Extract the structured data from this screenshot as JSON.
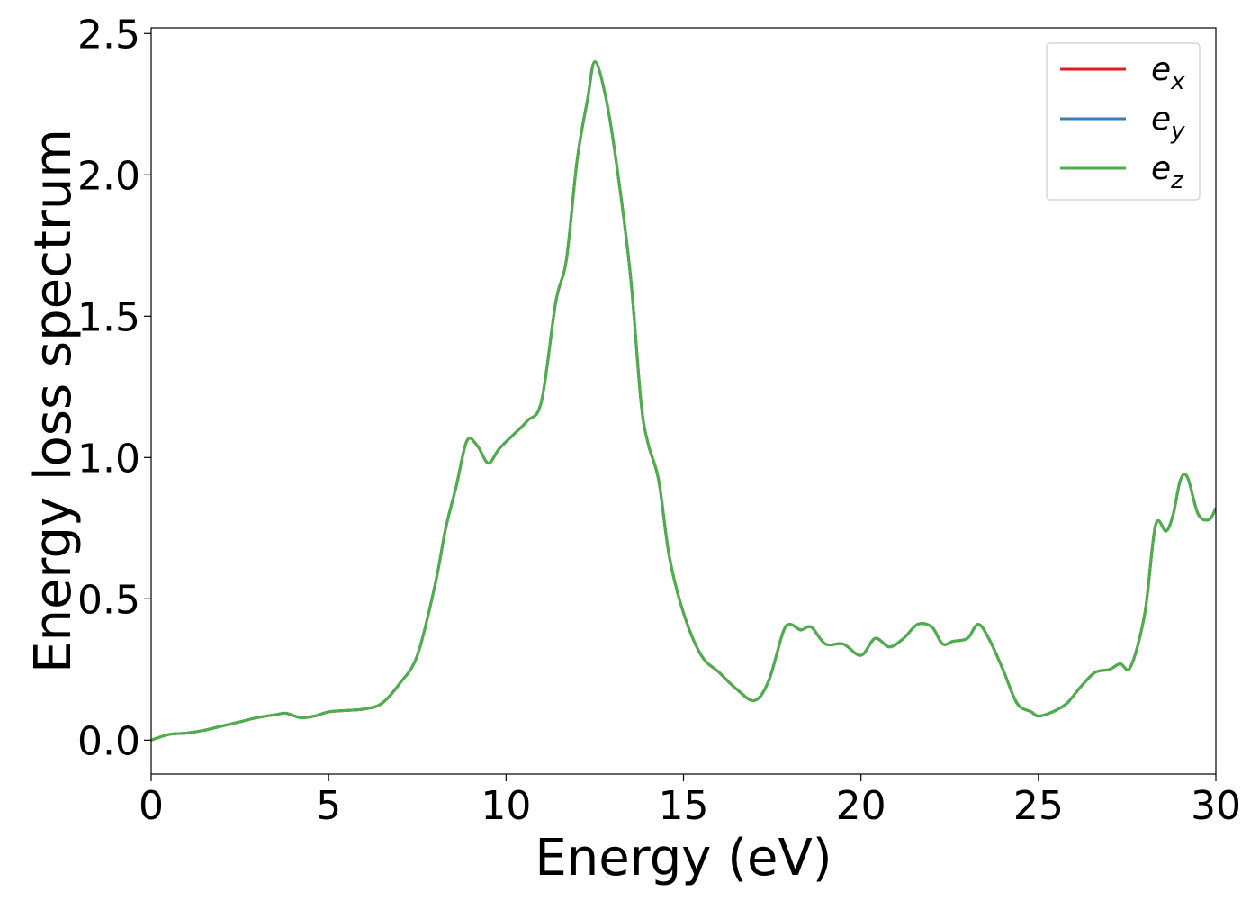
{
  "chart_data": {
    "type": "line",
    "title": "",
    "xlabel": "Energy (eV)",
    "ylabel": "Energy loss spectrum",
    "xlim": [
      0,
      30
    ],
    "ylim": [
      -0.12,
      2.52
    ],
    "xticks": [
      0,
      5,
      10,
      15,
      20,
      25,
      30
    ],
    "xtick_labels": [
      "0",
      "5",
      "10",
      "15",
      "20",
      "25",
      "30"
    ],
    "yticks": [
      0.0,
      0.5,
      1.0,
      1.5,
      2.0,
      2.5
    ],
    "ytick_labels": [
      "0.0",
      "0.5",
      "1.0",
      "1.5",
      "2.0",
      "2.5"
    ],
    "grid": false,
    "legend_position": "top-right",
    "series": [
      {
        "name": "e_x",
        "legend_base": "e",
        "legend_sub": "x",
        "color": "#e41a1c",
        "x": [
          0,
          0.5,
          1.0,
          1.5,
          2.0,
          2.5,
          3.0,
          3.5,
          3.8,
          4.2,
          4.6,
          5.0,
          5.5,
          6.0,
          6.5,
          7.0,
          7.5,
          8.0,
          8.3,
          8.6,
          8.9,
          9.2,
          9.5,
          9.8,
          10.2,
          10.6,
          11.0,
          11.4,
          11.7,
          12.0,
          12.3,
          12.5,
          12.8,
          13.1,
          13.5,
          13.8,
          14.0,
          14.3,
          14.6,
          15.0,
          15.5,
          16.0,
          16.5,
          17.0,
          17.4,
          17.8,
          18.0,
          18.3,
          18.6,
          19.0,
          19.5,
          20.0,
          20.4,
          20.8,
          21.2,
          21.6,
          22.0,
          22.3,
          22.6,
          23.0,
          23.3,
          23.6,
          24.0,
          24.4,
          24.8,
          25.0,
          25.4,
          25.8,
          26.2,
          26.6,
          27.0,
          27.3,
          27.6,
          28.0,
          28.3,
          28.6,
          28.8,
          29.0,
          29.2,
          29.5,
          29.8,
          30.0
        ],
        "y": [
          0.0,
          0.02,
          0.025,
          0.035,
          0.05,
          0.065,
          0.08,
          0.09,
          0.095,
          0.08,
          0.085,
          0.1,
          0.105,
          0.11,
          0.13,
          0.2,
          0.3,
          0.55,
          0.75,
          0.9,
          1.06,
          1.04,
          0.98,
          1.03,
          1.08,
          1.13,
          1.2,
          1.55,
          1.7,
          2.05,
          2.27,
          2.4,
          2.28,
          2.05,
          1.65,
          1.2,
          1.05,
          0.92,
          0.65,
          0.45,
          0.3,
          0.24,
          0.18,
          0.14,
          0.21,
          0.38,
          0.41,
          0.39,
          0.4,
          0.34,
          0.34,
          0.3,
          0.36,
          0.33,
          0.36,
          0.41,
          0.4,
          0.34,
          0.35,
          0.36,
          0.41,
          0.36,
          0.25,
          0.13,
          0.1,
          0.085,
          0.1,
          0.13,
          0.19,
          0.24,
          0.25,
          0.27,
          0.26,
          0.45,
          0.76,
          0.74,
          0.8,
          0.92,
          0.93,
          0.8,
          0.78,
          0.82
        ]
      },
      {
        "name": "e_y",
        "legend_base": "e",
        "legend_sub": "y",
        "color": "#377eb8",
        "x": [
          0,
          0.5,
          1.0,
          1.5,
          2.0,
          2.5,
          3.0,
          3.5,
          3.8,
          4.2,
          4.6,
          5.0,
          5.5,
          6.0,
          6.5,
          7.0,
          7.5,
          8.0,
          8.3,
          8.6,
          8.9,
          9.2,
          9.5,
          9.8,
          10.2,
          10.6,
          11.0,
          11.4,
          11.7,
          12.0,
          12.3,
          12.5,
          12.8,
          13.1,
          13.5,
          13.8,
          14.0,
          14.3,
          14.6,
          15.0,
          15.5,
          16.0,
          16.5,
          17.0,
          17.4,
          17.8,
          18.0,
          18.3,
          18.6,
          19.0,
          19.5,
          20.0,
          20.4,
          20.8,
          21.2,
          21.6,
          22.0,
          22.3,
          22.6,
          23.0,
          23.3,
          23.6,
          24.0,
          24.4,
          24.8,
          25.0,
          25.4,
          25.8,
          26.2,
          26.6,
          27.0,
          27.3,
          27.6,
          28.0,
          28.3,
          28.6,
          28.8,
          29.0,
          29.2,
          29.5,
          29.8,
          30.0
        ],
        "y": [
          0.0,
          0.02,
          0.025,
          0.035,
          0.05,
          0.065,
          0.08,
          0.09,
          0.095,
          0.08,
          0.085,
          0.1,
          0.105,
          0.11,
          0.13,
          0.2,
          0.3,
          0.55,
          0.75,
          0.9,
          1.06,
          1.04,
          0.98,
          1.03,
          1.08,
          1.13,
          1.2,
          1.55,
          1.7,
          2.05,
          2.27,
          2.4,
          2.28,
          2.05,
          1.65,
          1.2,
          1.05,
          0.92,
          0.65,
          0.45,
          0.3,
          0.24,
          0.18,
          0.14,
          0.21,
          0.38,
          0.41,
          0.39,
          0.4,
          0.34,
          0.34,
          0.3,
          0.36,
          0.33,
          0.36,
          0.41,
          0.4,
          0.34,
          0.35,
          0.36,
          0.41,
          0.36,
          0.25,
          0.13,
          0.1,
          0.085,
          0.1,
          0.13,
          0.19,
          0.24,
          0.25,
          0.27,
          0.26,
          0.45,
          0.76,
          0.74,
          0.8,
          0.92,
          0.93,
          0.8,
          0.78,
          0.82
        ]
      },
      {
        "name": "e_z",
        "legend_base": "e",
        "legend_sub": "z",
        "color": "#4daf4a",
        "x": [
          0,
          0.5,
          1.0,
          1.5,
          2.0,
          2.5,
          3.0,
          3.5,
          3.8,
          4.2,
          4.6,
          5.0,
          5.5,
          6.0,
          6.5,
          7.0,
          7.5,
          8.0,
          8.3,
          8.6,
          8.9,
          9.2,
          9.5,
          9.8,
          10.2,
          10.6,
          11.0,
          11.4,
          11.7,
          12.0,
          12.3,
          12.5,
          12.8,
          13.1,
          13.5,
          13.8,
          14.0,
          14.3,
          14.6,
          15.0,
          15.5,
          16.0,
          16.5,
          17.0,
          17.4,
          17.8,
          18.0,
          18.3,
          18.6,
          19.0,
          19.5,
          20.0,
          20.4,
          20.8,
          21.2,
          21.6,
          22.0,
          22.3,
          22.6,
          23.0,
          23.3,
          23.6,
          24.0,
          24.4,
          24.8,
          25.0,
          25.4,
          25.8,
          26.2,
          26.6,
          27.0,
          27.3,
          27.6,
          28.0,
          28.3,
          28.6,
          28.8,
          29.0,
          29.2,
          29.5,
          29.8,
          30.0
        ],
        "y": [
          0.0,
          0.02,
          0.025,
          0.035,
          0.05,
          0.065,
          0.08,
          0.09,
          0.095,
          0.08,
          0.085,
          0.1,
          0.105,
          0.11,
          0.13,
          0.2,
          0.3,
          0.55,
          0.75,
          0.9,
          1.06,
          1.04,
          0.98,
          1.03,
          1.08,
          1.13,
          1.2,
          1.55,
          1.7,
          2.05,
          2.27,
          2.4,
          2.28,
          2.05,
          1.65,
          1.2,
          1.05,
          0.92,
          0.65,
          0.45,
          0.3,
          0.24,
          0.18,
          0.14,
          0.21,
          0.38,
          0.41,
          0.39,
          0.4,
          0.34,
          0.34,
          0.3,
          0.36,
          0.33,
          0.36,
          0.41,
          0.4,
          0.34,
          0.35,
          0.36,
          0.41,
          0.36,
          0.25,
          0.13,
          0.1,
          0.085,
          0.1,
          0.13,
          0.19,
          0.24,
          0.25,
          0.27,
          0.26,
          0.45,
          0.76,
          0.74,
          0.8,
          0.92,
          0.93,
          0.8,
          0.78,
          0.82
        ]
      }
    ]
  }
}
